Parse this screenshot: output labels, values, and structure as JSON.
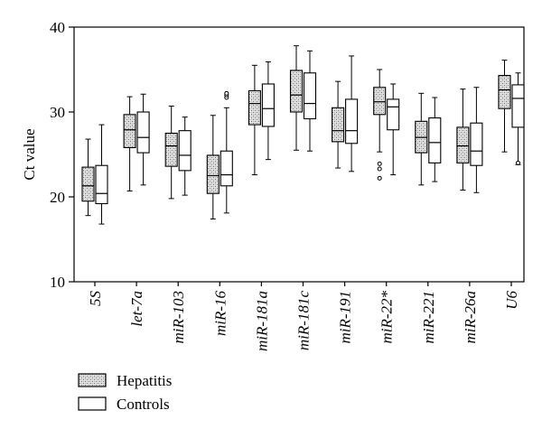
{
  "chart_data": {
    "type": "boxplot",
    "ylabel": "Ct value",
    "ylim": [
      10,
      40
    ],
    "yticks": [
      10,
      20,
      30,
      40
    ],
    "grid": false,
    "legend_position": "bottom-left",
    "categories": [
      "5S",
      "let-7a",
      "miR-103",
      "miR-16",
      "miR-181a",
      "miR-181c",
      "miR-191",
      "miR-22*",
      "miR-221",
      "miR-26a",
      "U6"
    ],
    "series": [
      {
        "name": "Hepatitis",
        "fill": "hatched",
        "boxes": [
          {
            "min": 17.8,
            "q1": 19.5,
            "median": 21.3,
            "q3": 23.5,
            "max": 26.8,
            "outliers": []
          },
          {
            "min": 20.7,
            "q1": 25.8,
            "median": 27.9,
            "q3": 29.7,
            "max": 31.8,
            "outliers": []
          },
          {
            "min": 19.8,
            "q1": 23.6,
            "median": 26.0,
            "q3": 27.5,
            "max": 30.7,
            "outliers": []
          },
          {
            "min": 17.4,
            "q1": 20.4,
            "median": 22.5,
            "q3": 24.9,
            "max": 29.6,
            "outliers": []
          },
          {
            "min": 22.6,
            "q1": 28.5,
            "median": 31.0,
            "q3": 32.5,
            "max": 35.5,
            "outliers": []
          },
          {
            "min": 25.5,
            "q1": 30.0,
            "median": 32.0,
            "q3": 34.9,
            "max": 37.8,
            "outliers": []
          },
          {
            "min": 23.4,
            "q1": 26.5,
            "median": 27.8,
            "q3": 30.5,
            "max": 33.6,
            "outliers": []
          },
          {
            "min": 25.3,
            "q1": 29.7,
            "median": 31.2,
            "q3": 32.9,
            "max": 35.0,
            "outliers": [
              23.9,
              23.3,
              22.2
            ]
          },
          {
            "min": 21.4,
            "q1": 25.2,
            "median": 27.0,
            "q3": 28.9,
            "max": 32.2,
            "outliers": []
          },
          {
            "min": 20.8,
            "q1": 24.0,
            "median": 26.0,
            "q3": 28.2,
            "max": 32.7,
            "outliers": []
          },
          {
            "min": 25.3,
            "q1": 30.4,
            "median": 32.6,
            "q3": 34.3,
            "max": 36.1,
            "outliers": []
          }
        ]
      },
      {
        "name": "Controls",
        "fill": "white",
        "boxes": [
          {
            "min": 16.8,
            "q1": 19.2,
            "median": 20.4,
            "q3": 23.7,
            "max": 28.5,
            "outliers": []
          },
          {
            "min": 21.4,
            "q1": 25.2,
            "median": 27.0,
            "q3": 30.0,
            "max": 32.1,
            "outliers": []
          },
          {
            "min": 20.2,
            "q1": 23.1,
            "median": 24.9,
            "q3": 27.8,
            "max": 29.4,
            "outliers": []
          },
          {
            "min": 18.1,
            "q1": 21.3,
            "median": 22.6,
            "q3": 25.4,
            "max": 30.5,
            "outliers": [
              31.7,
              32.0,
              32.2
            ]
          },
          {
            "min": 24.4,
            "q1": 28.3,
            "median": 30.4,
            "q3": 33.3,
            "max": 35.9,
            "outliers": []
          },
          {
            "min": 25.4,
            "q1": 29.2,
            "median": 31.0,
            "q3": 34.6,
            "max": 37.2,
            "outliers": []
          },
          {
            "min": 23.0,
            "q1": 26.3,
            "median": 27.8,
            "q3": 31.5,
            "max": 36.6,
            "outliers": []
          },
          {
            "min": 22.6,
            "q1": 27.9,
            "median": 30.6,
            "q3": 31.5,
            "max": 33.3,
            "outliers": []
          },
          {
            "min": 21.8,
            "q1": 24.0,
            "median": 26.4,
            "q3": 29.3,
            "max": 31.7,
            "outliers": []
          },
          {
            "min": 20.5,
            "q1": 23.7,
            "median": 25.4,
            "q3": 28.7,
            "max": 32.9,
            "outliers": []
          },
          {
            "min": 23.8,
            "q1": 28.2,
            "median": 31.6,
            "q3": 33.2,
            "max": 34.6,
            "outliers": [
              24.0
            ]
          }
        ]
      }
    ]
  }
}
